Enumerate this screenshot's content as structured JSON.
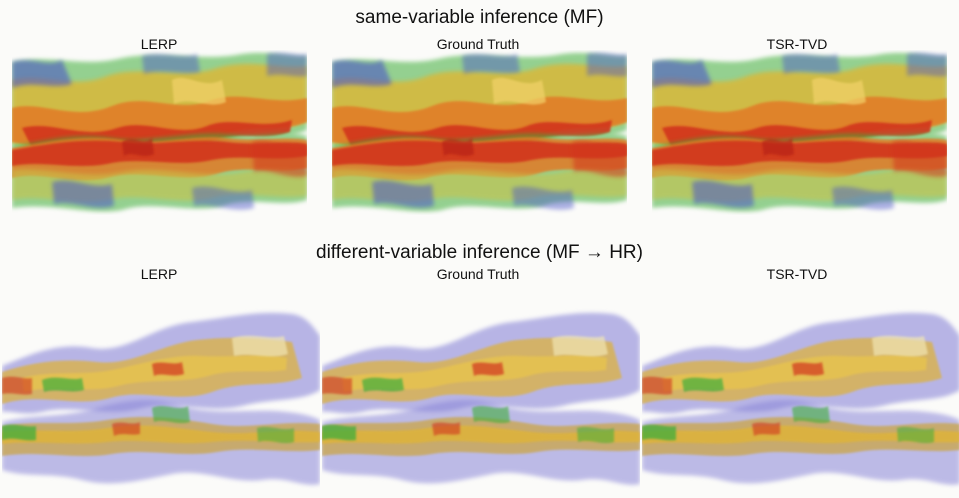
{
  "top_section": {
    "title": "same-variable inference (MF)",
    "labels": [
      "LERP",
      "Ground Truth",
      "TSR-TVD"
    ]
  },
  "bottom_section": {
    "title": "different-variable inference (MF → HR)",
    "labels": [
      "LERP",
      "Ground Truth",
      "TSR-TVD"
    ]
  },
  "palette": {
    "background": "#fbfbf9",
    "blue": "#4b55c8",
    "green": "#3fae3a",
    "yellow": "#e3b52e",
    "orange": "#e27a28",
    "red": "#d2361f",
    "lavender": "#8a86d8",
    "tan": "#c9a85a"
  }
}
